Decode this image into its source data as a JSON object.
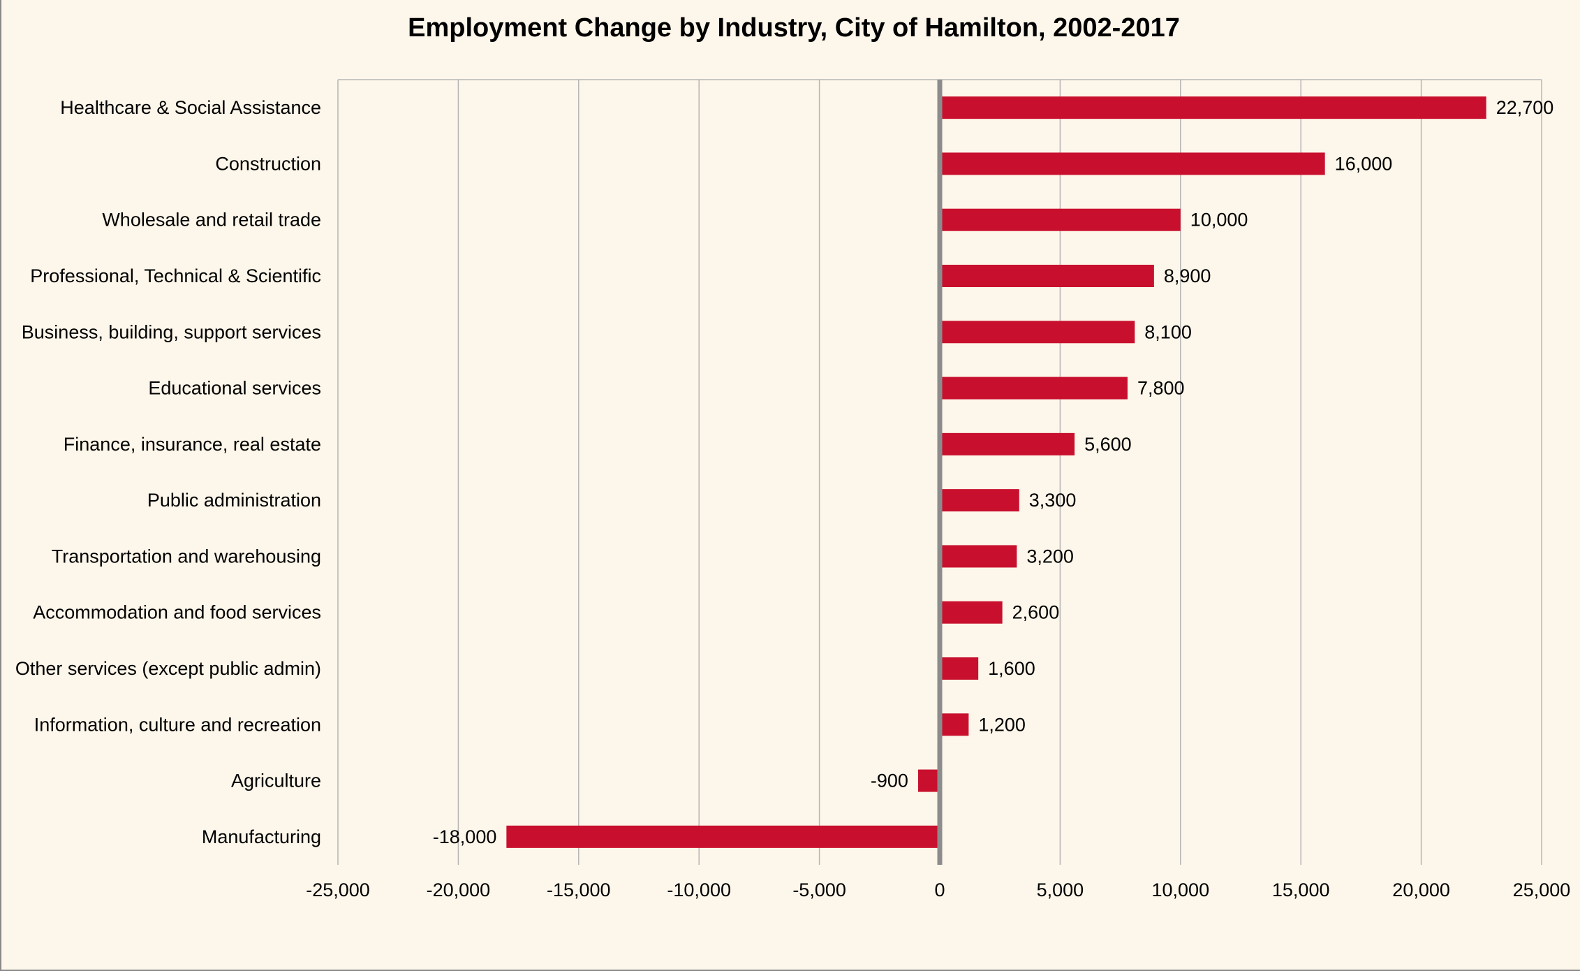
{
  "chart_data": {
    "type": "bar",
    "orientation": "horizontal",
    "title": "Employment Change by  Industry, City of Hamilton, 2002-2017",
    "categories": [
      "Healthcare & Social Assistance",
      "Construction",
      "Wholesale and retail trade",
      "Professional, Technical & Scientific",
      "Business, building, support services",
      "Educational services",
      "Finance, insurance, real estate",
      "Public administration",
      "Transportation and warehousing",
      "Accommodation and food services",
      "Other services (except public admin)",
      "Information, culture and recreation",
      "Agriculture",
      "Manufacturing"
    ],
    "values": [
      22700,
      16000,
      10000,
      8900,
      8100,
      7800,
      5600,
      3300,
      3200,
      2600,
      1600,
      1200,
      -900,
      -18000
    ],
    "data_labels": [
      "22,700",
      "16,000",
      "10,000",
      "8,900",
      "8,100",
      "7,800",
      "5,600",
      "3,300",
      "3,200",
      "2,600",
      "1,600",
      "1,200",
      "-900",
      "-18,000"
    ],
    "xlim": [
      -25000,
      25000
    ],
    "xticks": [
      -25000,
      -20000,
      -15000,
      -10000,
      -5000,
      0,
      5000,
      10000,
      15000,
      20000,
      25000
    ],
    "xtick_labels": [
      "-25,000",
      "-20,000",
      "-15,000",
      "-10,000",
      "-5,000",
      "0",
      "5,000",
      "10,000",
      "15,000",
      "20,000",
      "25,000"
    ],
    "grid": "vertical",
    "legend": "none",
    "xlabel": "",
    "ylabel": "",
    "colors": {
      "bar": "#c8102e",
      "background": "#fdf6ea",
      "grid": "#b5b5b5",
      "zero_axis": "#8c8c8c"
    }
  }
}
